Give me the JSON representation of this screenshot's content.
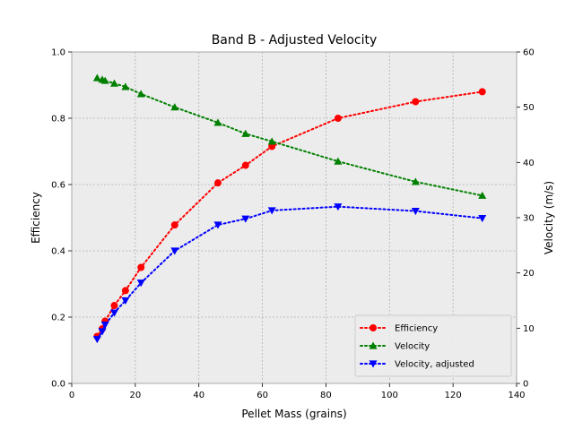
{
  "chart_data": {
    "type": "line",
    "title": "Band B - Adjusted Velocity",
    "xlabel": "Pellet Mass (grains)",
    "ylabel": "Efficiency",
    "y2label": "Velocity (m/s)",
    "xlim": [
      0,
      140
    ],
    "ylim": [
      0,
      1.0
    ],
    "y2lim": [
      0,
      60
    ],
    "grid": true,
    "legend_position": "lower-right",
    "x_ticks": [
      "0",
      "20",
      "40",
      "60",
      "80",
      "100",
      "120",
      "140"
    ],
    "y_ticks": [
      "0.0",
      "0.2",
      "0.4",
      "0.6",
      "0.8",
      "1.0"
    ],
    "y2_ticks": [
      "0",
      "10",
      "20",
      "30",
      "40",
      "50",
      "60"
    ],
    "x": [
      8.0,
      9.6,
      10.5,
      13.4,
      16.9,
      21.8,
      32.4,
      46.0,
      54.7,
      63.0,
      83.8,
      108.2,
      129.2
    ],
    "series": [
      {
        "name": "Efficiency",
        "axis": "left",
        "color": "#ff0000",
        "marker": "circle",
        "values": [
          0.142,
          0.165,
          0.188,
          0.235,
          0.28,
          0.35,
          0.478,
          0.605,
          0.658,
          0.715,
          0.8,
          0.85,
          0.88
        ]
      },
      {
        "name": "Velocity",
        "axis": "right",
        "color": "#008000",
        "marker": "triangle-up",
        "values": [
          55.3,
          55.0,
          54.8,
          54.3,
          53.7,
          52.4,
          50.0,
          47.2,
          45.2,
          43.8,
          40.2,
          36.5,
          34.0
        ]
      },
      {
        "name": "Velocity, adjusted",
        "axis": "right",
        "color": "#0000ff",
        "marker": "triangle-down",
        "values": [
          8.0,
          9.4,
          10.6,
          12.8,
          15.0,
          18.2,
          24.0,
          28.7,
          29.8,
          31.3,
          32.0,
          31.2,
          29.9
        ]
      }
    ]
  }
}
